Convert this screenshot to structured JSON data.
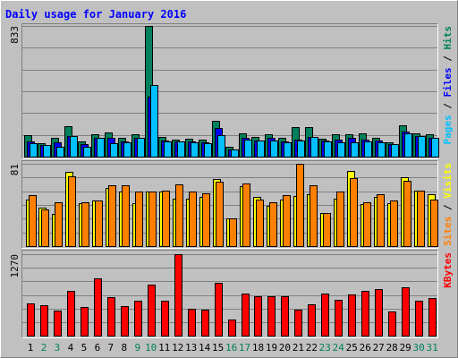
{
  "chart_data": {
    "type": "bar",
    "title": "Daily usage for January 2016",
    "colors": {
      "hits": "#00805c",
      "files": "#0000ff",
      "pages": "#00c0ff",
      "visits": "#ffff00",
      "sites": "#ff8000",
      "kbytes": "#ff0000",
      "background": "#c0c0c0",
      "grid": "#808080",
      "title": "#0000ff",
      "weekend_label": "#00805c"
    },
    "days": [
      "1",
      "2",
      "3",
      "4",
      "5",
      "6",
      "7",
      "8",
      "9",
      "10",
      "11",
      "12",
      "13",
      "14",
      "15",
      "16",
      "17",
      "18",
      "19",
      "20",
      "21",
      "22",
      "23",
      "24",
      "25",
      "26",
      "27",
      "28",
      "29",
      "30",
      "31"
    ],
    "weekend_days": [
      "2",
      "3",
      "9",
      "10",
      "16",
      "17",
      "23",
      "24",
      "30",
      "31"
    ],
    "panels": [
      {
        "id": "hits",
        "max_label": "833",
        "ylim": [
          0,
          833
        ],
        "axis_labels": [
          {
            "text": "Pages",
            "color": "#00c0ff"
          },
          {
            "text": " / ",
            "color": "#000000"
          },
          {
            "text": "Files",
            "color": "#0000ff"
          },
          {
            "text": " / ",
            "color": "#000000"
          },
          {
            "text": "Hits",
            "color": "#00805c"
          }
        ],
        "series": [
          {
            "name": "Hits",
            "color": "#00805c",
            "values": [
              135,
              85,
              120,
              195,
              95,
              140,
              155,
              120,
              140,
              833,
              125,
              110,
              115,
              110,
              230,
              60,
              150,
              125,
              140,
              120,
              190,
              190,
              115,
              140,
              140,
              150,
              120,
              90,
              200,
              150,
              145
            ]
          },
          {
            "name": "Files",
            "color": "#0000ff",
            "values": [
              95,
              75,
              90,
              130,
              80,
              120,
              120,
              95,
              120,
              380,
              100,
              95,
              95,
              90,
              185,
              45,
              120,
              105,
              120,
              95,
              110,
              125,
              100,
              110,
              120,
              110,
              100,
              80,
              160,
              130,
              120
            ]
          },
          {
            "name": "Pages",
            "color": "#00c0ff",
            "values": [
              85,
              75,
              65,
              130,
              65,
              120,
              85,
              90,
              120,
              455,
              95,
              95,
              90,
              85,
              135,
              45,
              110,
              105,
              100,
              90,
              105,
              125,
              95,
              90,
              90,
              95,
              90,
              80,
              150,
              130,
              120
            ]
          }
        ]
      },
      {
        "id": "visits",
        "max_label": "81",
        "ylim": [
          0,
          81
        ],
        "axis_labels": [
          {
            "text": "Sites",
            "color": "#ff8000"
          },
          {
            "text": " / ",
            "color": "#000000"
          },
          {
            "text": "Visits",
            "color": "#ffff00"
          }
        ],
        "series": [
          {
            "name": "Visits",
            "color": "#ffff00",
            "values": [
              46,
              38,
              32,
              73,
              42,
              45,
              57,
              54,
              42,
              54,
              54,
              47,
              47,
              48,
              66,
              27,
              59,
              48,
              40,
              46,
              49,
              51,
              33,
              47,
              74,
              41,
              48,
              42,
              68,
              55,
              51
            ]
          },
          {
            "name": "Sites",
            "color": "#ff8000",
            "values": [
              50,
              36,
              43,
              69,
              43,
              45,
              60,
              60,
              54,
              54,
              55,
              61,
              54,
              52,
              63,
              27,
              62,
              46,
              43,
              50,
              81,
              60,
              33,
              54,
              67,
              43,
              51,
              45,
              64,
              55,
              46
            ]
          }
        ]
      },
      {
        "id": "kbytes",
        "max_label": "1270",
        "ylim": [
          0,
          1270
        ],
        "axis_labels": [
          {
            "text": "KBytes",
            "color": "#ff0000"
          }
        ],
        "series": [
          {
            "name": "KBytes",
            "color": "#ff0000",
            "values": [
              500,
              470,
              395,
              700,
              450,
              890,
              595,
              460,
              545,
              800,
              550,
              1270,
              425,
              405,
              820,
              255,
              660,
              615,
              615,
              615,
              405,
              490,
              660,
              555,
              645,
              695,
              720,
              375,
              750,
              540,
              590
            ]
          }
        ]
      }
    ]
  }
}
